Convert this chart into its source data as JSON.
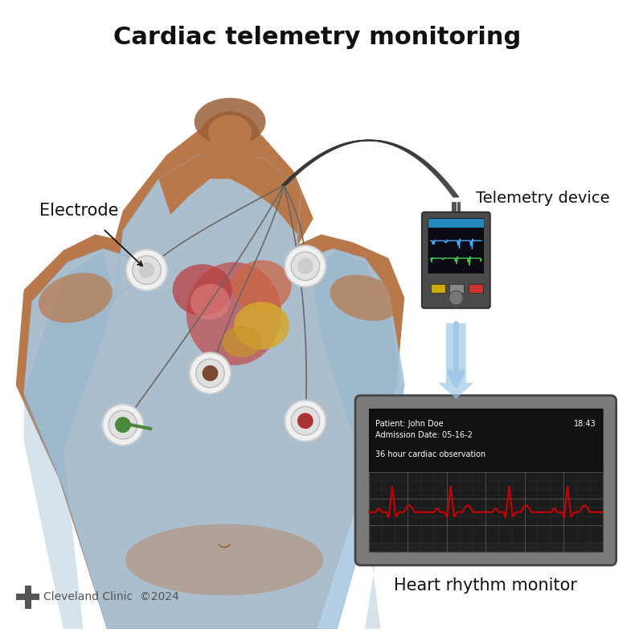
{
  "title": "Cardiac telemetry monitoring",
  "title_fontsize": 22,
  "title_fontweight": "bold",
  "bg_color": "#ffffff",
  "electrode_label": "Electrode",
  "telemetry_label": "Telemetry device",
  "monitor_label": "Heart rhythm monitor",
  "monitor_text1": "Patient: John Doe",
  "monitor_text2": "Admission Date: 05-16-2",
  "monitor_text3": "36 hour cardiac observation",
  "monitor_time": "18:43",
  "cc_text": "Cleveland Clinic  ©2024",
  "skin_color": "#b8784a",
  "skin_dark": "#9a6038",
  "shirt_color": "#aac8e0",
  "shirt_edge": "#8ab0cc",
  "electrode_outer": "#e8e8e8",
  "wire_color": "#555555",
  "monitor_bg": "#111111",
  "monitor_frame": "#888888",
  "ecg_color": "#cc0000",
  "arrow_color": "#a0c8e8",
  "device_bg": "#555555"
}
